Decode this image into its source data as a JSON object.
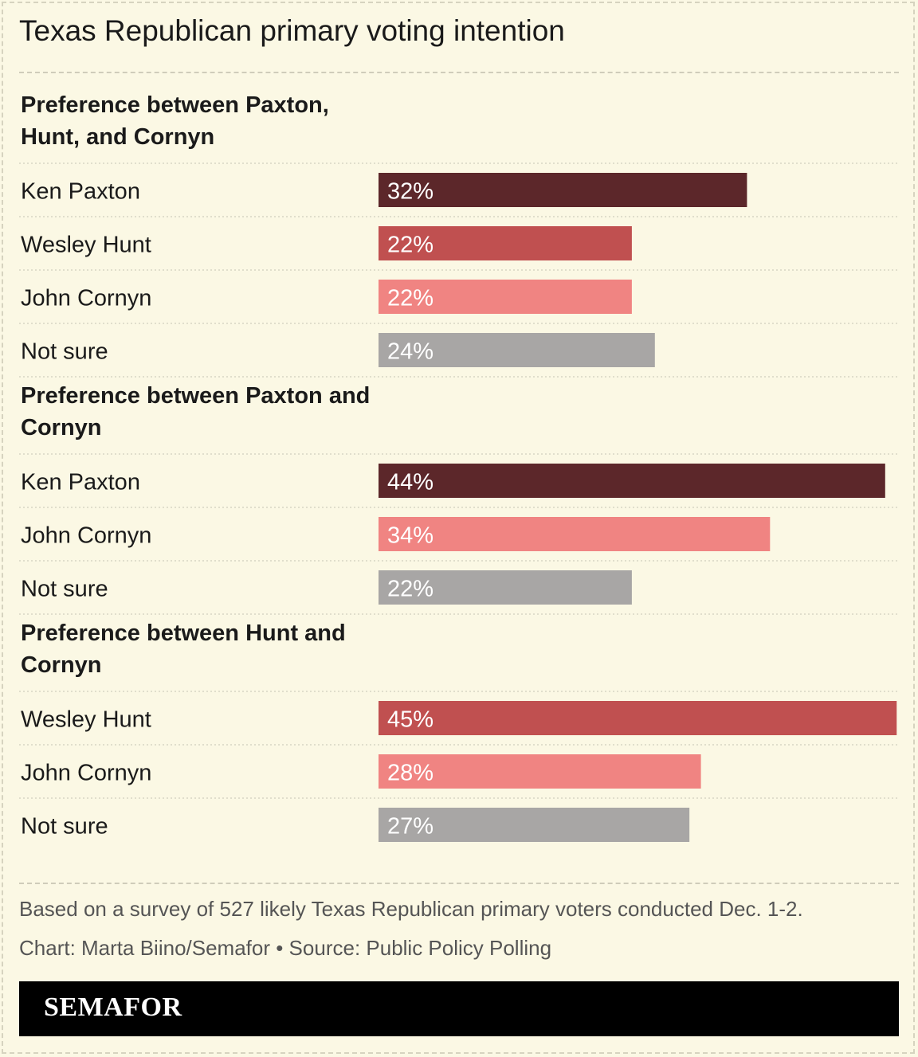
{
  "title": "Texas Republican primary voting intention",
  "chart_data": {
    "type": "bar",
    "orientation": "horizontal",
    "value_format": "percent",
    "groups": [
      {
        "title_lines": [
          "Preference between Paxton,",
          "Hunt, and Cornyn"
        ],
        "items": [
          {
            "label": "Ken Paxton",
            "value": 32,
            "color": "#5c272a"
          },
          {
            "label": "Wesley Hunt",
            "value": 22,
            "color": "#c05050"
          },
          {
            "label": "John Cornyn",
            "value": 22,
            "color": "#f08482"
          },
          {
            "label": "Not sure",
            "value": 24,
            "color": "#a8a6a5"
          }
        ]
      },
      {
        "title_lines": [
          "Preference between Paxton and",
          "Cornyn"
        ],
        "items": [
          {
            "label": "Ken Paxton",
            "value": 44,
            "color": "#5c272a"
          },
          {
            "label": "John Cornyn",
            "value": 34,
            "color": "#f08482"
          },
          {
            "label": "Not sure",
            "value": 22,
            "color": "#a8a6a5"
          }
        ]
      },
      {
        "title_lines": [
          "Preference between Hunt and",
          "Cornyn"
        ],
        "items": [
          {
            "label": "Wesley Hunt",
            "value": 45,
            "color": "#c05050"
          },
          {
            "label": "John Cornyn",
            "value": 28,
            "color": "#f08482"
          },
          {
            "label": "Not sure",
            "value": 27,
            "color": "#a8a6a5"
          }
        ]
      }
    ]
  },
  "notes": {
    "survey": "Based on a survey of 527 likely Texas Republican primary voters conducted Dec. 1-2.",
    "credit": "Chart: Marta Biino/Semafor • Source: Public Policy Polling"
  },
  "footer": {
    "logo": "SEMAFOR"
  }
}
